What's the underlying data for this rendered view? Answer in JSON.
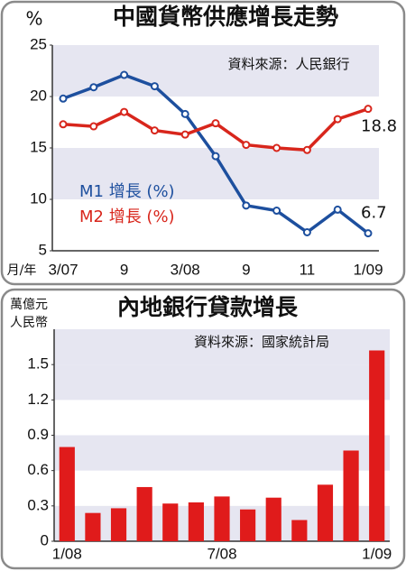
{
  "chart_data": [
    {
      "type": "line",
      "title": "中國貨幣供應增長走勢",
      "subtitle": "資料來源：人民銀行",
      "y_label": "%",
      "x_label": "月/年",
      "categories": [
        "3/07",
        null,
        "9",
        null,
        "3/08",
        null,
        "9",
        null,
        "11",
        null,
        "1/09"
      ],
      "series": [
        {
          "name": "M1 增長 (%)",
          "color": "#1d4f9e",
          "values": [
            19.8,
            20.9,
            22.1,
            21.0,
            18.3,
            14.2,
            9.4,
            8.9,
            6.8,
            9.0,
            6.7
          ]
        },
        {
          "name": "M2 增長 (%)",
          "color": "#d8261c",
          "values": [
            17.3,
            17.1,
            18.5,
            16.7,
            16.3,
            17.4,
            15.3,
            15.0,
            14.8,
            17.8,
            18.8
          ]
        }
      ],
      "ylim": [
        5,
        25
      ],
      "yticks": [
        5,
        10,
        15,
        20,
        25
      ],
      "grid": true
    },
    {
      "type": "bar",
      "title": "內地銀行貸款增長",
      "subtitle": "資料來源：國家統計局",
      "y_label": [
        "萬億元",
        "人民幣"
      ],
      "categories": [
        "1/08",
        null,
        null,
        null,
        null,
        null,
        "7/08",
        null,
        null,
        null,
        null,
        null,
        "1/09"
      ],
      "values": [
        0.8,
        0.24,
        0.28,
        0.46,
        0.32,
        0.33,
        0.38,
        0.27,
        0.37,
        0.18,
        0.48,
        0.77,
        1.62
      ],
      "color": "#e01b1b",
      "ylim": [
        0,
        1.8
      ],
      "yticks": [
        0,
        0.3,
        0.6,
        0.9,
        1.2,
        1.5
      ],
      "grid": true
    }
  ]
}
